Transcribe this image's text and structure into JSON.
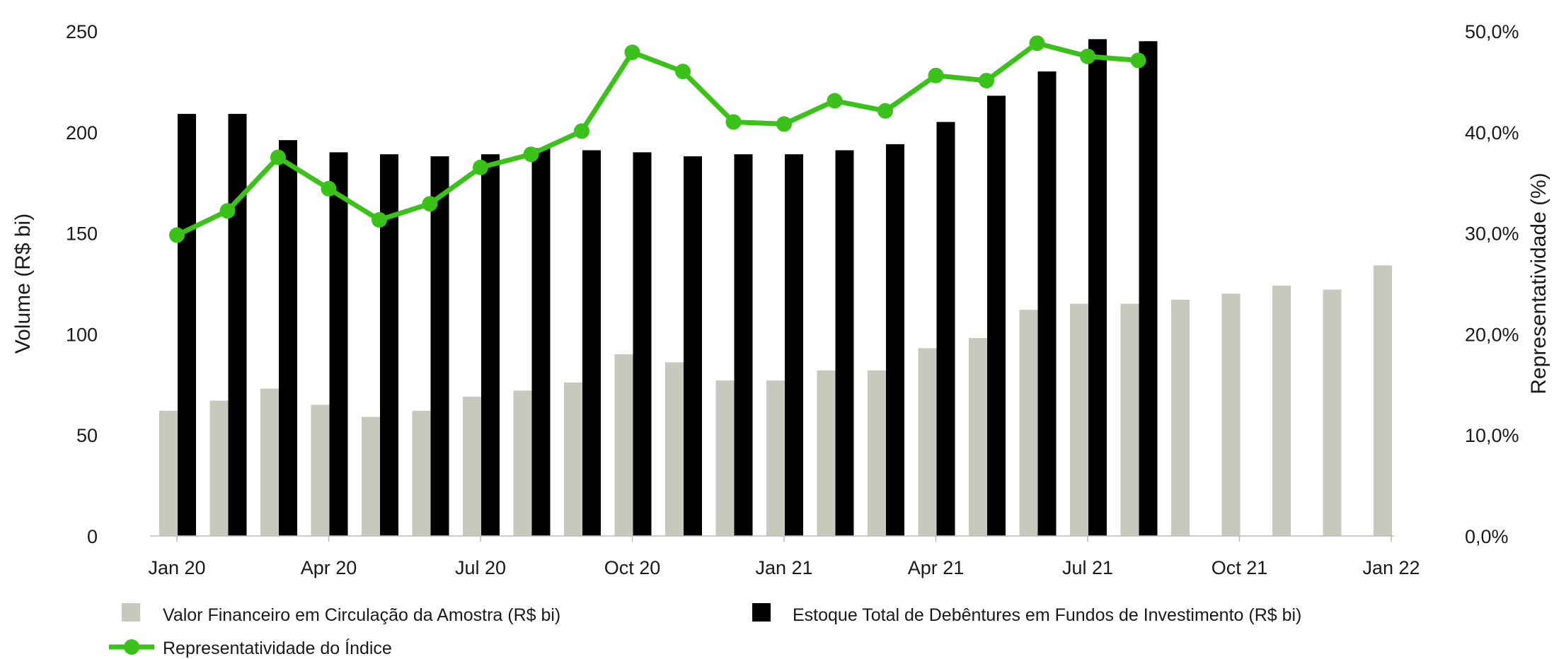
{
  "chart_data": {
    "type": "bar",
    "x": [
      "Jan 20",
      "Feb 20",
      "Mar 20",
      "Apr 20",
      "May 20",
      "Jun 20",
      "Jul 20",
      "Aug 20",
      "Sep 20",
      "Oct 20",
      "Nov 20",
      "Dec 20",
      "Jan 21",
      "Feb 21",
      "Mar 21",
      "Apr 21",
      "May 21",
      "Jun 21",
      "Jul 21",
      "Aug 21",
      "Sep 21",
      "Oct 21",
      "Nov 21",
      "Dec 21",
      "Jan 22"
    ],
    "x_tick_labels": [
      "Jan 20",
      "Apr 20",
      "Jul 20",
      "Oct 20",
      "Jan 21",
      "Apr 21",
      "Jul 21",
      "Oct 21",
      "Jan 22"
    ],
    "ylabel": "Volume (R$ bi)",
    "ylim": [
      0,
      250
    ],
    "y_ticks": [
      "0",
      "50",
      "100",
      "150",
      "200",
      "250"
    ],
    "y2label": "Representatividade (%)",
    "y2lim": [
      0,
      50
    ],
    "y2_ticks": [
      "0,0%",
      "10,0%",
      "20,0%",
      "30,0%",
      "40,0%",
      "50,0%"
    ],
    "grid": false,
    "legend_position": "bottom",
    "series": [
      {
        "name": "Valor Financeiro em Circulação da Amostra (R$ bi)",
        "kind": "bar",
        "axis": "left",
        "color": "#c8c9bd",
        "values": [
          62,
          67,
          73,
          65,
          59,
          62,
          69,
          72,
          76,
          90,
          86,
          77,
          77,
          82,
          82,
          93,
          98,
          112,
          115,
          115,
          117,
          120,
          124,
          122,
          134
        ]
      },
      {
        "name": "Estoque Total de Debêntures em Fundos de Investimento (R$ bi)",
        "kind": "bar",
        "axis": "left",
        "color": "#000000",
        "values": [
          209,
          209,
          196,
          190,
          189,
          188,
          189,
          192,
          191,
          190,
          188,
          189,
          189,
          191,
          194,
          205,
          218,
          230,
          246,
          245,
          null,
          null,
          null,
          null,
          null
        ]
      },
      {
        "name": "Representatividade do Índice",
        "kind": "line",
        "axis": "right",
        "color": "#3bc21a",
        "values": [
          29.8,
          32.2,
          37.5,
          34.4,
          31.3,
          32.9,
          36.5,
          37.8,
          40.1,
          47.9,
          46.0,
          41.0,
          40.8,
          43.1,
          42.1,
          45.6,
          45.1,
          48.8,
          47.5,
          47.1,
          null,
          null,
          null,
          null,
          null
        ]
      }
    ]
  }
}
